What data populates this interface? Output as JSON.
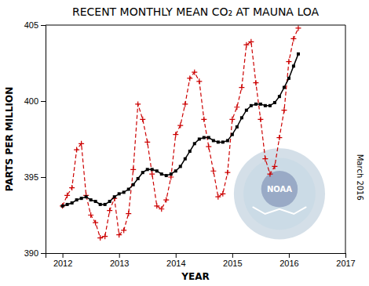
{
  "chart_data": {
    "type": "line",
    "title": "RECENT MONTHLY MEAN CO₂ AT MAUNA LOA",
    "x_label": "YEAR",
    "y_label": "PARTS PER MILLION",
    "xlim": [
      2011.7,
      2017.0
    ],
    "ylim": [
      390,
      405
    ],
    "xticks": [
      2012,
      2013,
      2014,
      2015,
      2016,
      2017
    ],
    "yticks": [
      390,
      395,
      400,
      405
    ],
    "grid": false,
    "annotations": [
      "NOAA",
      "March 2016"
    ],
    "x": [
      2012.0,
      2012.083,
      2012.167,
      2012.25,
      2012.333,
      2012.417,
      2012.5,
      2012.583,
      2012.667,
      2012.75,
      2012.833,
      2012.917,
      2013.0,
      2013.083,
      2013.167,
      2013.25,
      2013.333,
      2013.417,
      2013.5,
      2013.583,
      2013.667,
      2013.75,
      2013.833,
      2013.917,
      2014.0,
      2014.083,
      2014.167,
      2014.25,
      2014.333,
      2014.417,
      2014.5,
      2014.583,
      2014.667,
      2014.75,
      2014.833,
      2014.917,
      2015.0,
      2015.083,
      2015.167,
      2015.25,
      2015.333,
      2015.417,
      2015.5,
      2015.583,
      2015.667,
      2015.75,
      2015.833,
      2015.917,
      2016.0,
      2016.083,
      2016.167
    ],
    "series": [
      {
        "color": "#cc0000",
        "line_style": "dashed",
        "marker": "plus",
        "values": [
          393.1,
          393.8,
          394.3,
          396.8,
          397.2,
          393.8,
          392.5,
          392.0,
          391.0,
          391.1,
          392.8,
          393.6,
          391.2,
          391.5,
          392.6,
          395.5,
          399.8,
          398.8,
          397.3,
          395.2,
          393.1,
          392.9,
          393.5,
          395.0,
          397.8,
          398.4,
          399.8,
          401.5,
          401.9,
          401.3,
          398.8,
          397.0,
          395.4,
          393.7,
          393.9,
          395.3,
          398.8,
          399.6,
          400.9,
          403.7,
          403.9,
          401.2,
          398.8,
          396.2,
          395.2,
          395.7,
          397.6,
          399.4,
          402.6,
          404.1,
          404.8
        ]
      },
      {
        "color": "#000000",
        "line_style": "solid",
        "marker": "square",
        "values": [
          393.1,
          393.2,
          393.3,
          393.5,
          393.6,
          393.7,
          393.5,
          393.4,
          393.2,
          393.2,
          393.4,
          393.7,
          393.9,
          394.0,
          394.2,
          394.5,
          394.9,
          395.3,
          395.5,
          395.5,
          395.4,
          395.2,
          395.1,
          395.2,
          395.4,
          395.7,
          396.2,
          396.7,
          397.2,
          397.5,
          397.6,
          397.6,
          397.4,
          397.3,
          397.3,
          397.4,
          397.8,
          398.3,
          398.9,
          399.4,
          399.7,
          399.8,
          399.8,
          399.7,
          399.7,
          399.9,
          400.3,
          400.9,
          401.5,
          402.3,
          403.1
        ]
      }
    ]
  }
}
